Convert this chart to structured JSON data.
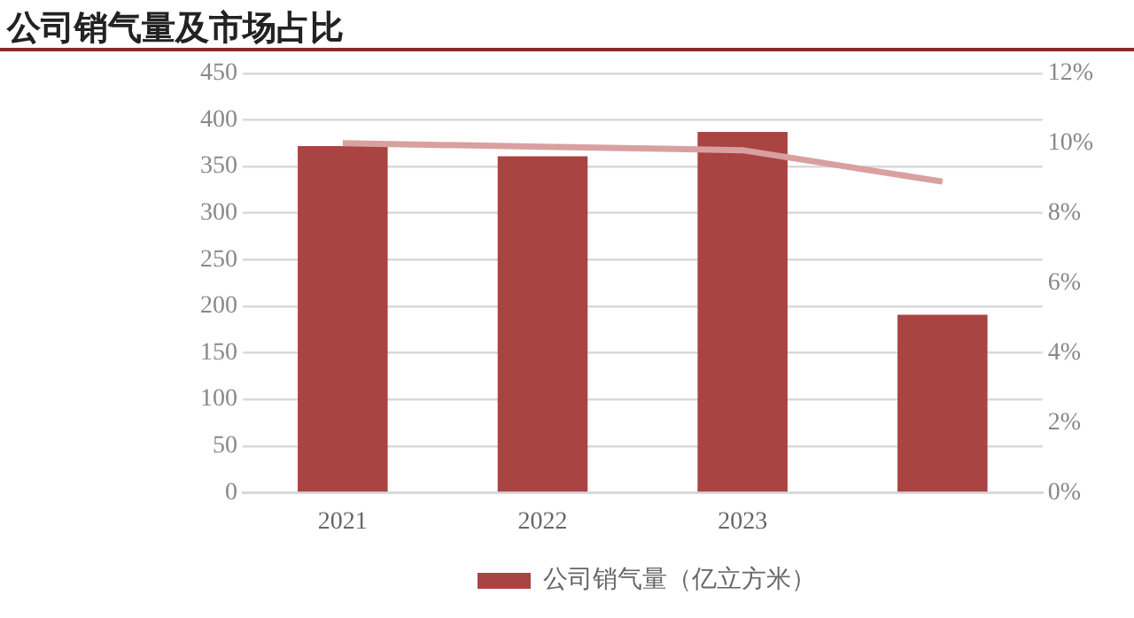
{
  "chart_data": {
    "type": "bar",
    "title": "公司销气量及市场占比",
    "categories": [
      "2021",
      "2022",
      "2023",
      null
    ],
    "series": [
      {
        "name": "公司销气量（亿立方米）",
        "color": "#a94442",
        "values": [
          372,
          361,
          387,
          191
        ]
      },
      {
        "type": "line",
        "axis": "y2",
        "color": "#d9a0a0",
        "values": [
          10.0,
          9.9,
          9.8,
          8.9
        ]
      }
    ],
    "ylim": [
      0,
      450
    ],
    "yticks": [
      0,
      50,
      100,
      150,
      200,
      250,
      300,
      350,
      400,
      450
    ],
    "y2lim": [
      0,
      12
    ],
    "y2ticks": [
      {
        "value": 0,
        "label": "0%"
      },
      {
        "value": 2,
        "label": "2%"
      },
      {
        "value": 4,
        "label": "4%"
      },
      {
        "value": 6,
        "label": "6%"
      },
      {
        "value": 8,
        "label": "8%"
      },
      {
        "value": 10,
        "label": "10%"
      },
      {
        "value": 12,
        "label": "12%"
      }
    ],
    "grid": "y",
    "legend": "bottom",
    "marker": "none"
  }
}
